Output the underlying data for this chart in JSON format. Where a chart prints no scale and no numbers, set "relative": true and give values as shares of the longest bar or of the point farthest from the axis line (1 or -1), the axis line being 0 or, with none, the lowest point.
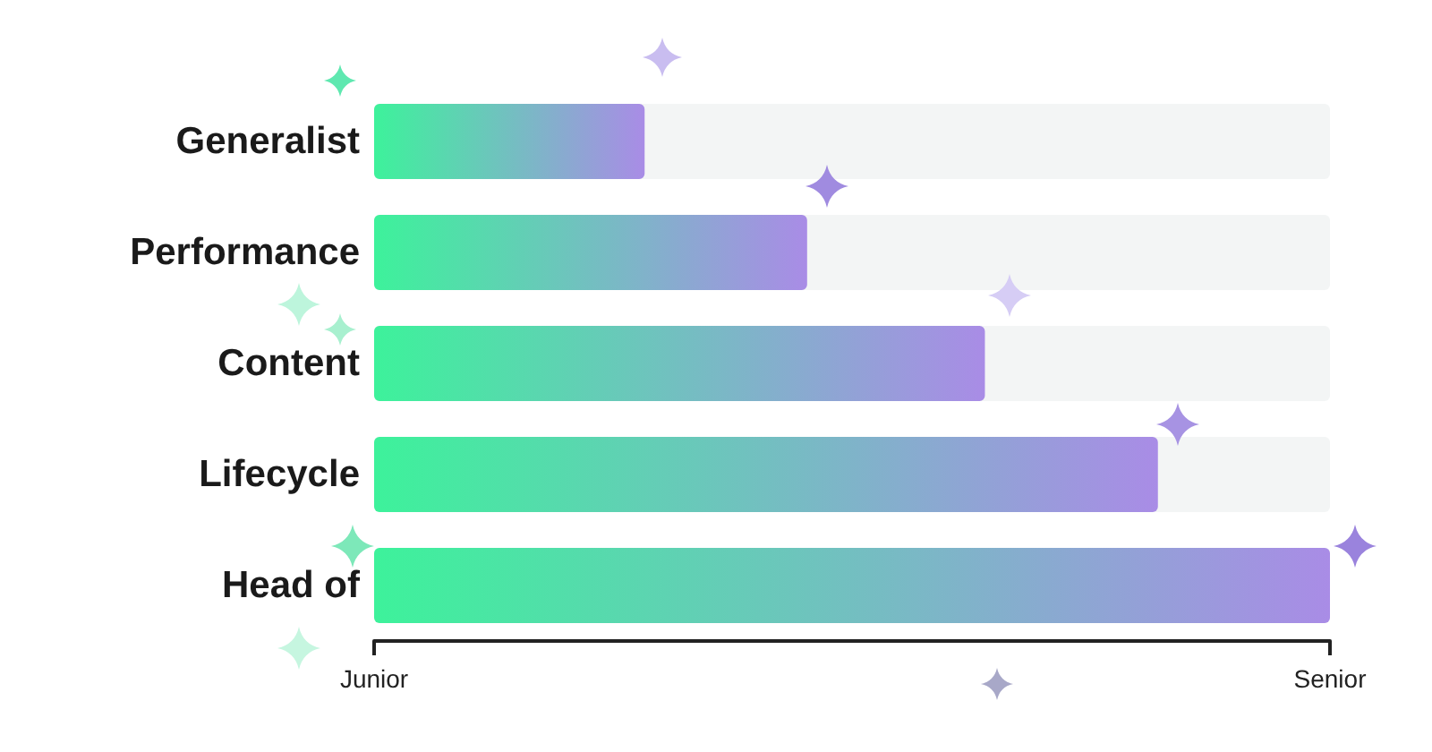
{
  "chart_data": {
    "type": "bar",
    "orientation": "horizontal",
    "relative": true,
    "categories": [
      "Generalist",
      "Performance",
      "Content",
      "Lifecycle",
      "Head of"
    ],
    "series": [
      {
        "color": "#3df29b",
        "values": [
          0.283,
          0.453,
          0.639,
          0.82,
          1
        ]
      }
    ],
    "annotations": [
      "Junior",
      "Senior"
    ]
  }
}
